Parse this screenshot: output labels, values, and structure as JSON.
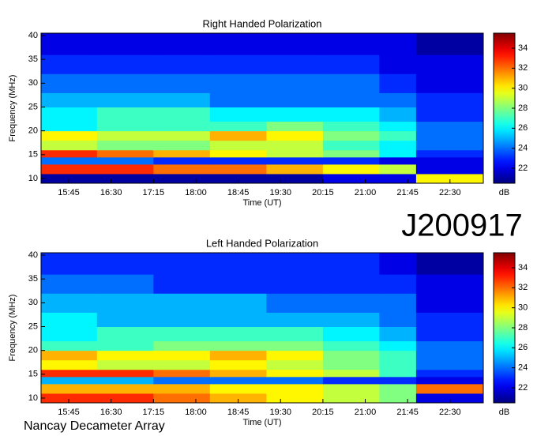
{
  "title": "J200917",
  "credit": "Nancay Decameter Array",
  "chart_data": [
    {
      "type": "heatmap",
      "title": "Right Handed Polarization",
      "x_label": "Time (UT)",
      "y_label": "Frequency (MHz)",
      "xlim": [
        15.26,
        23.09
      ],
      "ylim": [
        9,
        40.5
      ],
      "xticks": [
        {
          "value": 15.75,
          "label": "15:45"
        },
        {
          "value": 16.5,
          "label": "16:30"
        },
        {
          "value": 17.25,
          "label": "17:15"
        },
        {
          "value": 18,
          "label": "18:00"
        },
        {
          "value": 18.75,
          "label": "18:45"
        },
        {
          "value": 19.5,
          "label": "19:30"
        },
        {
          "value": 20.25,
          "label": "20:15"
        },
        {
          "value": 21,
          "label": "21:00"
        },
        {
          "value": 21.75,
          "label": "21:45"
        },
        {
          "value": 22.5,
          "label": "22:30"
        }
      ],
      "yticks": [
        10,
        15,
        20,
        25,
        30,
        35,
        40
      ],
      "x_edges": [
        15.26,
        16.25,
        17.25,
        18.25,
        19.25,
        20.25,
        21.25,
        21.9,
        23.09
      ],
      "y_edges": [
        9,
        11,
        13,
        14.5,
        16,
        18,
        20,
        22,
        25,
        28,
        32,
        36,
        40.5
      ],
      "z": [
        [
          21,
          21,
          21,
          21,
          21,
          22,
          22,
          30
        ],
        [
          33,
          33,
          32,
          32,
          31,
          30,
          29,
          22
        ],
        [
          24,
          24,
          23,
          23,
          23,
          23,
          22,
          22
        ],
        [
          33,
          32,
          31,
          30,
          29,
          28,
          26,
          23
        ],
        [
          29,
          28,
          28,
          29,
          29,
          27,
          26,
          24
        ],
        [
          30,
          29,
          29,
          31,
          30,
          28,
          27,
          24
        ],
        [
          26,
          27,
          27,
          27,
          28,
          27,
          26,
          24
        ],
        [
          26,
          27,
          27,
          26,
          26,
          26,
          25,
          23
        ],
        [
          25,
          25,
          25,
          24,
          24,
          24,
          24,
          23
        ],
        [
          24,
          24,
          24,
          24,
          24,
          24,
          23,
          22
        ],
        [
          23,
          23,
          23,
          23,
          23,
          23,
          22,
          22
        ],
        [
          22,
          22,
          22,
          22,
          22,
          22,
          22,
          21
        ]
      ],
      "colorbar": {
        "label": "dB",
        "colormap": "jet",
        "lim": [
          20.5,
          35.5
        ],
        "ticks": [
          22,
          24,
          26,
          28,
          30,
          32,
          34
        ]
      }
    },
    {
      "type": "heatmap",
      "title": "Left Handed Polarization",
      "x_label": "Time (UT)",
      "y_label": "Frequency (MHz)",
      "xlim": [
        15.26,
        23.09
      ],
      "ylim": [
        9,
        40.5
      ],
      "xticks": [
        {
          "value": 15.75,
          "label": "15:45"
        },
        {
          "value": 16.5,
          "label": "16:30"
        },
        {
          "value": 17.25,
          "label": "17:15"
        },
        {
          "value": 18,
          "label": "18:00"
        },
        {
          "value": 18.75,
          "label": "18:45"
        },
        {
          "value": 19.5,
          "label": "19:30"
        },
        {
          "value": 20.25,
          "label": "20:15"
        },
        {
          "value": 21,
          "label": "21:00"
        },
        {
          "value": 21.75,
          "label": "21:45"
        },
        {
          "value": 22.5,
          "label": "22:30"
        }
      ],
      "yticks": [
        10,
        15,
        20,
        25,
        30,
        35,
        40
      ],
      "x_edges": [
        15.26,
        16.25,
        17.25,
        18.25,
        19.25,
        20.25,
        21.25,
        21.9,
        23.09
      ],
      "y_edges": [
        9,
        11,
        13,
        14.5,
        16,
        18,
        20,
        22,
        25,
        28,
        32,
        36,
        40.5
      ],
      "z": [
        [
          33,
          33,
          32,
          31,
          30,
          29,
          28,
          22
        ],
        [
          31,
          31,
          31,
          30,
          30,
          29,
          28,
          32
        ],
        [
          25,
          25,
          24,
          24,
          24,
          23,
          23,
          22
        ],
        [
          33,
          33,
          32,
          31,
          30,
          29,
          27,
          23
        ],
        [
          30,
          29,
          29,
          30,
          29,
          28,
          27,
          24
        ],
        [
          31,
          30,
          30,
          31,
          30,
          28,
          27,
          24
        ],
        [
          27,
          27,
          28,
          28,
          28,
          27,
          26,
          24
        ],
        [
          26,
          27,
          27,
          27,
          27,
          26,
          25,
          23
        ],
        [
          26,
          25,
          25,
          25,
          25,
          25,
          24,
          23
        ],
        [
          25,
          25,
          25,
          25,
          24,
          24,
          24,
          22
        ],
        [
          24,
          24,
          23,
          23,
          23,
          23,
          23,
          22
        ],
        [
          23,
          23,
          23,
          23,
          23,
          23,
          22,
          21
        ]
      ],
      "colorbar": {
        "label": "dB",
        "colormap": "jet",
        "lim": [
          20.5,
          35.5
        ],
        "ticks": [
          22,
          24,
          26,
          28,
          30,
          32,
          34
        ]
      }
    }
  ]
}
